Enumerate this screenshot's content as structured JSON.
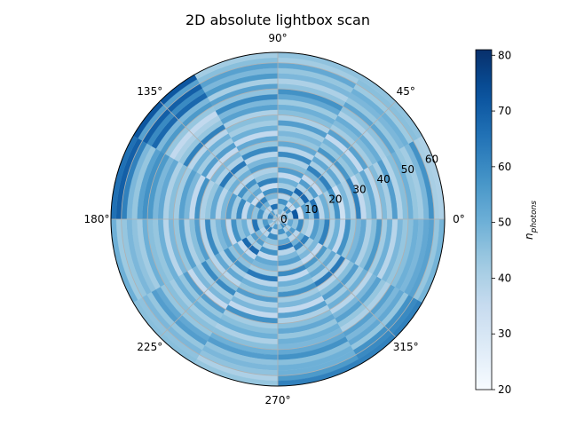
{
  "chart_data": {
    "type": "heatmap",
    "projection": "polar",
    "title": "2D absolute lightbox scan",
    "theta_tick_labels": [
      "0°",
      "45°",
      "90°",
      "135°",
      "180°",
      "225°",
      "270°",
      "315°"
    ],
    "radial_tick_labels": [
      "0",
      "10",
      "20",
      "30",
      "40",
      "50",
      "60"
    ],
    "r_range": [
      0,
      64
    ],
    "grid": true,
    "theta_bins_deg": [
      0,
      30,
      60,
      90,
      120,
      150,
      180,
      210,
      240,
      270,
      300,
      330
    ],
    "r_bin_width": 2,
    "colorbar": {
      "label": "n_photons",
      "label_base": "n",
      "label_sub": "photons",
      "range": [
        20,
        81
      ],
      "tick_labels": [
        "20",
        "30",
        "40",
        "50",
        "60",
        "70",
        "80"
      ],
      "tick_values": [
        20,
        30,
        40,
        50,
        60,
        70,
        80
      ],
      "colormap": "Blues"
    },
    "values": [
      [
        34,
        52,
        40,
        72,
        30,
        55,
        45,
        65,
        38,
        50,
        42,
        58,
        33,
        48,
        40,
        62,
        36,
        44,
        52,
        38,
        47,
        41,
        55,
        39,
        46,
        50,
        44,
        42,
        48,
        58,
        41,
        40
      ],
      [
        45,
        38,
        60,
        35,
        50,
        42,
        68,
        40,
        55,
        36,
        48,
        62,
        41,
        52,
        39,
        57,
        44,
        49,
        36,
        54,
        42,
        47,
        51,
        40,
        45,
        53,
        44,
        48,
        50,
        43,
        46,
        45
      ],
      [
        35,
        48,
        44,
        58,
        38,
        62,
        42,
        50,
        36,
        55,
        46,
        40,
        60,
        38,
        52,
        44,
        48,
        42,
        55,
        40,
        46,
        50,
        43,
        52,
        58,
        45,
        40,
        48,
        44,
        52,
        42,
        45
      ],
      [
        52,
        40,
        66,
        38,
        48,
        58,
        35,
        62,
        45,
        40,
        55,
        48,
        38,
        60,
        44,
        52,
        36,
        50,
        42,
        46,
        40,
        54,
        48,
        60,
        45,
        54,
        41,
        56,
        48,
        54,
        46,
        42
      ],
      [
        40,
        55,
        38,
        50,
        62,
        35,
        52,
        45,
        58,
        38,
        50,
        42,
        64,
        40,
        48,
        36,
        55,
        42,
        50,
        38,
        62,
        44,
        40,
        36,
        44,
        56,
        48,
        68,
        60,
        70,
        54,
        72
      ],
      [
        46,
        62,
        40,
        58,
        45,
        52,
        36,
        60,
        42,
        55,
        48,
        38,
        52,
        44,
        40,
        58,
        36,
        48,
        54,
        42,
        46,
        40,
        52,
        48,
        56,
        58,
        54,
        44,
        48,
        62,
        70,
        66
      ],
      [
        38,
        48,
        56,
        42,
        65,
        38,
        50,
        45,
        58,
        36,
        52,
        48,
        42,
        60,
        38,
        55,
        46,
        40,
        54,
        44,
        48,
        38,
        50,
        44,
        46,
        50,
        42,
        45,
        48,
        44,
        43,
        50
      ],
      [
        50,
        40,
        62,
        38,
        48,
        55,
        42,
        68,
        36,
        50,
        45,
        58,
        40,
        52,
        38,
        46,
        60,
        42,
        48,
        36,
        55,
        44,
        50,
        42,
        46,
        44,
        52,
        55,
        44,
        48,
        45,
        46
      ],
      [
        42,
        55,
        38,
        60,
        45,
        40,
        58,
        36,
        52,
        48,
        42,
        64,
        38,
        50,
        44,
        55,
        40,
        48,
        36,
        58,
        42,
        46,
        50,
        40,
        46,
        50,
        55,
        45,
        48,
        45,
        40,
        44
      ],
      [
        36,
        45,
        58,
        42,
        52,
        66,
        38,
        48,
        55,
        40,
        60,
        36,
        50,
        44,
        58,
        42,
        48,
        36,
        54,
        40,
        46,
        52,
        44,
        50,
        48,
        52,
        58,
        46,
        50,
        50,
        56,
        62
      ],
      [
        48,
        60,
        40,
        55,
        38,
        50,
        62,
        42,
        48,
        36,
        56,
        44,
        52,
        40,
        64,
        38,
        46,
        55,
        42,
        50,
        38,
        48,
        54,
        44,
        40,
        54,
        48,
        52,
        44,
        58,
        60,
        62
      ],
      [
        40,
        36,
        52,
        45,
        60,
        42,
        38,
        55,
        48,
        62,
        40,
        50,
        36,
        58,
        44,
        48,
        52,
        40,
        46,
        56,
        42,
        50,
        38,
        48,
        44,
        46,
        50,
        48,
        52,
        54,
        44,
        49
      ]
    ]
  }
}
